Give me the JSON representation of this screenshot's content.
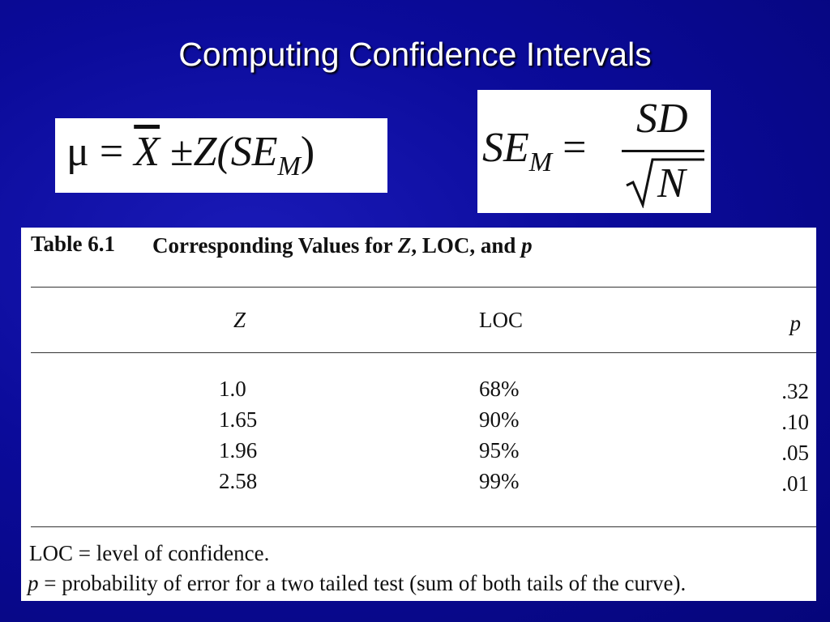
{
  "header": {
    "title": "Computing Confidence Intervals"
  },
  "formula_mean": {
    "lhs": "μ",
    "eq": "=",
    "mean": "X",
    "pm": "±",
    "rhs": "Z(SE",
    "sub": "M",
    "close": ")"
  },
  "formula_se": {
    "lhs": "SE",
    "sub": "M",
    "eq": "=",
    "numerator": "SD",
    "denominator": "N"
  },
  "table": {
    "label": "Table 6.1",
    "caption": [
      "Corresponding Values for ",
      "Z",
      ", LOC, and ",
      "p"
    ],
    "headers": [
      "Z",
      "LOC",
      "p"
    ],
    "rows": [
      [
        "1.0",
        "68%",
        ".32"
      ],
      [
        "1.65",
        "90%",
        ".10"
      ],
      [
        "1.96",
        "95%",
        ".05"
      ],
      [
        "2.58",
        "99%",
        ".01"
      ]
    ],
    "notes": [
      [
        "LOC = level of confidence."
      ],
      [
        "p",
        " = probability of error for a two tailed test (sum of both tails of the curve)."
      ]
    ]
  }
}
